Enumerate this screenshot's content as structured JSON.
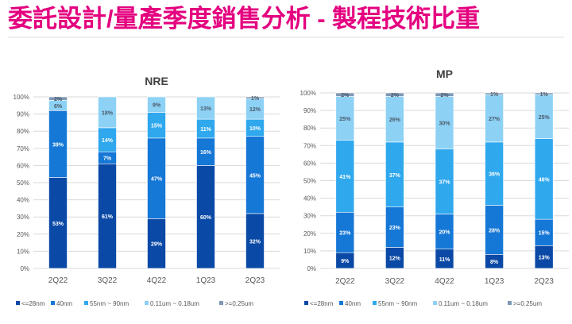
{
  "page": {
    "title": "委託設計/量產季度銷售分析 - 製程技術比重"
  },
  "chart_data": [
    {
      "type": "bar",
      "stacked": true,
      "title": "NRE",
      "categories": [
        "2Q22",
        "3Q22",
        "4Q22",
        "1Q23",
        "2Q23"
      ],
      "series": [
        {
          "name": "<=28nm",
          "values": [
            53,
            61,
            29,
            60,
            32
          ],
          "labels": [
            "53%",
            "61%",
            "29%",
            "60%",
            "32%"
          ]
        },
        {
          "name": "40nm",
          "values": [
            39,
            7,
            47,
            16,
            45
          ],
          "labels": [
            "39%",
            "7%",
            "47%",
            "16%",
            "45%"
          ]
        },
        {
          "name": "55nm ~ 90nm",
          "values": [
            0,
            14,
            15,
            11,
            10
          ],
          "labels": [
            "",
            "14%",
            "15%",
            "11%",
            "10%"
          ]
        },
        {
          "name": "0.11um ~ 0.18um",
          "values": [
            6,
            18,
            9,
            13,
            12
          ],
          "labels": [
            "6%",
            "18%",
            "9%",
            "13%",
            "12%"
          ]
        },
        {
          "name": ">=0.25um",
          "values": [
            2,
            0,
            0,
            0,
            1
          ],
          "labels": [
            "2%",
            "",
            "",
            "",
            "1%"
          ]
        }
      ],
      "ylim": [
        0,
        100
      ],
      "yticks": [
        "0%",
        "10%",
        "20%",
        "30%",
        "40%",
        "50%",
        "60%",
        "70%",
        "80%",
        "90%",
        "100%"
      ],
      "legend_position": "bottom"
    },
    {
      "type": "bar",
      "stacked": true,
      "title": "MP",
      "categories": [
        "2Q22",
        "3Q22",
        "4Q22",
        "1Q23",
        "2Q23"
      ],
      "series": [
        {
          "name": "<=28nm",
          "values": [
            9,
            12,
            11,
            8,
            13
          ],
          "labels": [
            "9%",
            "12%",
            "11%",
            "8%",
            "13%"
          ]
        },
        {
          "name": "40nm",
          "values": [
            23,
            23,
            20,
            28,
            15
          ],
          "labels": [
            "23%",
            "23%",
            "20%",
            "28%",
            "15%"
          ]
        },
        {
          "name": "55nm ~ 90nm",
          "values": [
            41,
            37,
            37,
            36,
            46
          ],
          "labels": [
            "41%",
            "37%",
            "37%",
            "36%",
            "46%"
          ]
        },
        {
          "name": "0.11um ~ 0.18um",
          "values": [
            25,
            26,
            30,
            27,
            25
          ],
          "labels": [
            "25%",
            "26%",
            "30%",
            "27%",
            "25%"
          ]
        },
        {
          "name": ">=0.25um",
          "values": [
            2,
            2,
            2,
            1,
            1
          ],
          "labels": [
            "2%",
            "2%",
            "2%",
            "1%",
            "1%"
          ]
        }
      ],
      "ylim": [
        0,
        100
      ],
      "yticks": [
        "0%",
        "10%",
        "20%",
        "30%",
        "40%",
        "50%",
        "60%",
        "70%",
        "80%",
        "90%",
        "100%"
      ],
      "legend_position": "bottom"
    }
  ],
  "colors": {
    "title": "#e4007f",
    "series": [
      "#0b49a6",
      "#1577d6",
      "#2fa8ee",
      "#8dd1f5",
      "#7f98b5"
    ],
    "label_light": "#ffffff",
    "label_dark": "#4a5a6a",
    "grid": "#d9d9d9",
    "axis_text": "#595959"
  }
}
